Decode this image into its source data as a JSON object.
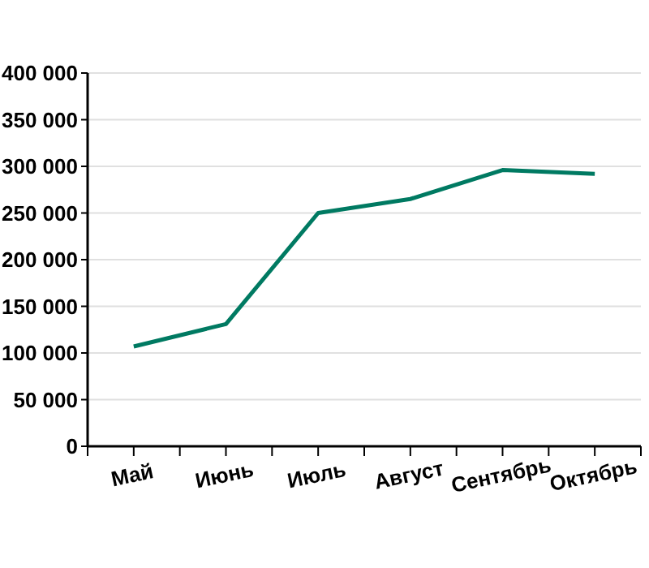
{
  "chart_data": {
    "type": "line",
    "categories": [
      "Май",
      "Июнь",
      "Июль",
      "Август",
      "Сентябрь",
      "Октябрь"
    ],
    "series": [
      {
        "color": "#007a62",
        "values": [
          107000,
          131000,
          250000,
          265000,
          296000,
          292000
        ]
      }
    ],
    "ylim": [
      0,
      400000
    ],
    "yticks": [
      {
        "value": 0,
        "label": "0"
      },
      {
        "value": 50000,
        "label": "50 000"
      },
      {
        "value": 100000,
        "label": "100 000"
      },
      {
        "value": 150000,
        "label": "150 000"
      },
      {
        "value": 200000,
        "label": "200 000"
      },
      {
        "value": 250000,
        "label": "250 000"
      },
      {
        "value": 300000,
        "label": "300 000"
      },
      {
        "value": 350000,
        "label": "350 000"
      },
      {
        "value": 400000,
        "label": "400 000"
      }
    ],
    "grid": "y",
    "marker": "none",
    "line_style": "solid"
  }
}
